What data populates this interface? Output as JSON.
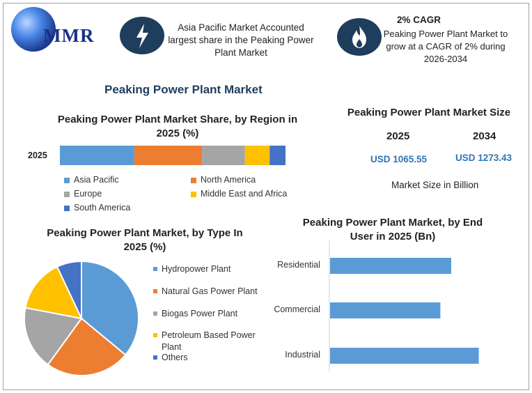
{
  "header": {
    "logo_text": "MMR",
    "region_note": "Asia Pacific Market Accounted largest share in the Peaking Power Plant Market",
    "cagr_title": "2% CAGR",
    "cagr_note": "Peaking Power Plant Market to grow at a CAGR of 2% during 2026-2034",
    "icons": [
      "lightning-icon",
      "flame-icon"
    ]
  },
  "main_title": "Peaking Power Plant Market",
  "colors": {
    "blue": "#5b9bd5",
    "orange": "#ed7d31",
    "gray": "#a5a5a5",
    "yellow": "#ffc000",
    "dark_blue": "#4472c4",
    "navy": "#1f3d5c"
  },
  "market_size": {
    "title": "Peaking Power Plant Market Size",
    "year1": "2025",
    "year2": "2034",
    "value1": "USD 1065.55",
    "value2": "USD 1273.43",
    "unit_note": "Market Size in Billion"
  },
  "chart_data": [
    {
      "type": "bar",
      "orientation": "horizontal-stacked",
      "title": "Peaking Power Plant Market Share, by Region in 2025 (%)",
      "categories": [
        "2025"
      ],
      "series": [
        {
          "name": "Asia Pacific",
          "values": [
            33
          ]
        },
        {
          "name": "North America",
          "values": [
            30
          ]
        },
        {
          "name": "Europe",
          "values": [
            19
          ]
        },
        {
          "name": "Middle East and Africa",
          "values": [
            11
          ]
        },
        {
          "name": "South America",
          "values": [
            7
          ]
        }
      ],
      "xlim": [
        0,
        100
      ],
      "grid": false,
      "legend": "bottom"
    },
    {
      "type": "pie",
      "title": "Peaking Power Plant Market, by Type In 2025 (%)",
      "labels": [
        "Hydropower Plant",
        "Natural Gas Power Plant",
        "Biogas Power Plant",
        "Petroleum Based Power Plant",
        "Others"
      ],
      "values": [
        36,
        24,
        18,
        15,
        7
      ],
      "legend": "right"
    },
    {
      "type": "bar",
      "orientation": "horizontal",
      "title": "Peaking Power Plant Market, by End User in 2025 (Bn)",
      "categories": [
        "Residential",
        "Commercial",
        "Industrial"
      ],
      "values": [
        290,
        264,
        356
      ],
      "xlim": [
        0,
        400
      ],
      "grid": false
    }
  ]
}
